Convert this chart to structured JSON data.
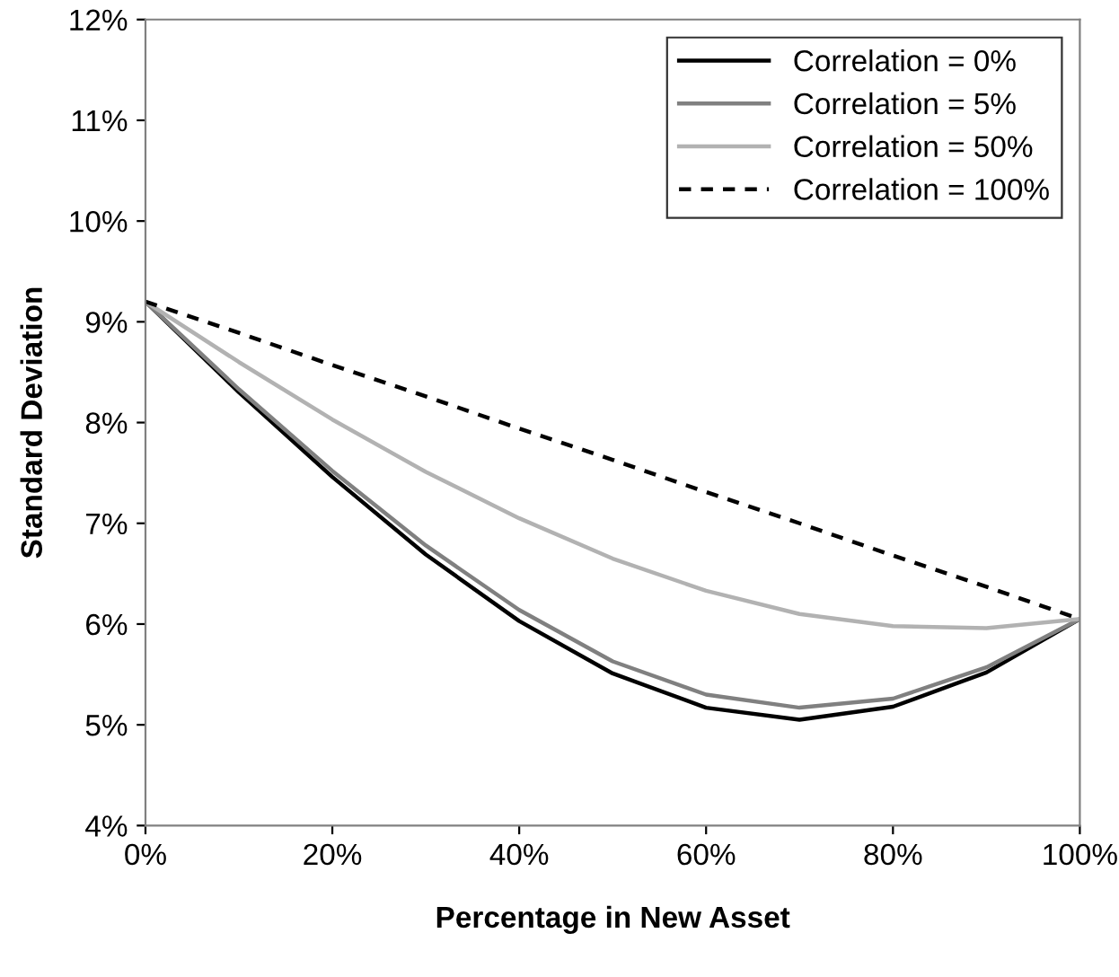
{
  "chart_data": {
    "type": "line",
    "xlabel": "Percentage in New Asset",
    "ylabel": "Standard Deviation",
    "x": [
      0,
      10,
      20,
      30,
      40,
      50,
      60,
      70,
      80,
      90,
      100
    ],
    "series": [
      {
        "name": "Correlation = 0%",
        "color": "#000000",
        "line_style": "solid",
        "values": [
          9.2,
          8.3,
          7.46,
          6.69,
          6.03,
          5.51,
          5.17,
          5.05,
          5.18,
          5.52,
          6.05
        ]
      },
      {
        "name": "Correlation = 5%",
        "color": "#808080",
        "line_style": "solid",
        "values": [
          9.2,
          8.33,
          7.52,
          6.78,
          6.14,
          5.63,
          5.3,
          5.17,
          5.26,
          5.57,
          6.05
        ]
      },
      {
        "name": "Correlation = 50%",
        "color": "#b2b2b2",
        "line_style": "solid",
        "values": [
          9.2,
          8.6,
          8.03,
          7.51,
          7.05,
          6.65,
          6.33,
          6.1,
          5.98,
          5.96,
          6.05
        ]
      },
      {
        "name": "Correlation = 100%",
        "color": "#000000",
        "line_style": "dashed",
        "values": [
          9.2,
          8.89,
          8.57,
          8.26,
          7.94,
          7.63,
          7.31,
          7.0,
          6.68,
          6.37,
          6.05
        ]
      }
    ],
    "xlim": [
      0,
      100
    ],
    "xticks": [
      {
        "value": 0,
        "label": "0%"
      },
      {
        "value": 20,
        "label": "20%"
      },
      {
        "value": 40,
        "label": "40%"
      },
      {
        "value": 60,
        "label": "60%"
      },
      {
        "value": 80,
        "label": "80%"
      },
      {
        "value": 100,
        "label": "100%"
      }
    ],
    "ylim": [
      4,
      12
    ],
    "yticks": [
      {
        "value": 4,
        "label": "4%"
      },
      {
        "value": 5,
        "label": "5%"
      },
      {
        "value": 6,
        "label": "6%"
      },
      {
        "value": 7,
        "label": "7%"
      },
      {
        "value": 8,
        "label": "8%"
      },
      {
        "value": 9,
        "label": "9%"
      },
      {
        "value": 10,
        "label": "10%"
      },
      {
        "value": 11,
        "label": "11%"
      },
      {
        "value": 12,
        "label": "12%"
      }
    ],
    "grid": false,
    "legend": "top right",
    "marker": "none"
  }
}
